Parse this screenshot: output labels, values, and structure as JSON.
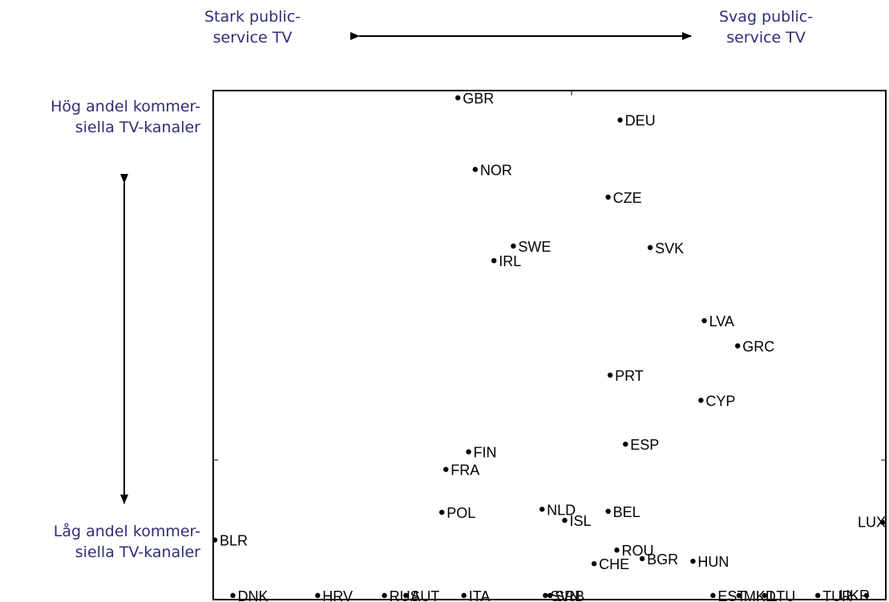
{
  "labels": {
    "top_left": [
      "Stark public-",
      "service TV"
    ],
    "top_right": [
      "Svag public-",
      "service TV"
    ],
    "left_top": [
      "Hög andel kommer-",
      "siella TV-kanaler"
    ],
    "left_bottom": [
      "Låg andel kommer-",
      "siella TV-kanaler"
    ]
  },
  "colors": {
    "annotation": "#2e2e7a",
    "axes": "#000000"
  },
  "chart_data": {
    "type": "scatter",
    "title": "",
    "xlabel": "",
    "ylabel": "",
    "xlim": [
      0,
      100
    ],
    "ylim": [
      0,
      100
    ],
    "grid": false,
    "points": [
      {
        "label": "GBR",
        "x": 36.4,
        "y": 99.2
      },
      {
        "label": "DEU",
        "x": 60.7,
        "y": 94.8
      },
      {
        "label": "NOR",
        "x": 39.0,
        "y": 85.0
      },
      {
        "label": "CZE",
        "x": 58.9,
        "y": 79.5
      },
      {
        "label": "SWE",
        "x": 44.7,
        "y": 69.8
      },
      {
        "label": "SVK",
        "x": 65.2,
        "y": 69.5
      },
      {
        "label": "IRL",
        "x": 41.8,
        "y": 66.9
      },
      {
        "label": "LVA",
        "x": 73.3,
        "y": 55.0
      },
      {
        "label": "GRC",
        "x": 78.3,
        "y": 50.0
      },
      {
        "label": "PRT",
        "x": 59.2,
        "y": 44.2
      },
      {
        "label": "CYP",
        "x": 72.8,
        "y": 39.2
      },
      {
        "label": "ESP",
        "x": 61.5,
        "y": 30.5
      },
      {
        "label": "FIN",
        "x": 38.0,
        "y": 29.0
      },
      {
        "label": "FRA",
        "x": 34.6,
        "y": 25.5
      },
      {
        "label": "POL",
        "x": 34.0,
        "y": 17.0
      },
      {
        "label": "NLD",
        "x": 49.0,
        "y": 17.6
      },
      {
        "label": "BEL",
        "x": 58.9,
        "y": 17.2
      },
      {
        "label": "ISL",
        "x": 52.4,
        "y": 15.4
      },
      {
        "label": "LUX",
        "x": 100.0,
        "y": 15.0
      },
      {
        "label": "BLR",
        "x": 0.0,
        "y": 11.5
      },
      {
        "label": "ROU",
        "x": 60.2,
        "y": 9.5
      },
      {
        "label": "BGR",
        "x": 64.0,
        "y": 7.8
      },
      {
        "label": "HUN",
        "x": 71.6,
        "y": 7.3
      },
      {
        "label": "CHE",
        "x": 56.8,
        "y": 6.8
      },
      {
        "label": "DNK",
        "x": 2.7,
        "y": 0.5
      },
      {
        "label": "HRV",
        "x": 15.4,
        "y": 0.5
      },
      {
        "label": "RUS",
        "x": 25.4,
        "y": 0.5
      },
      {
        "label": "AUT",
        "x": 28.6,
        "y": 0.5
      },
      {
        "label": "ITA",
        "x": 37.3,
        "y": 0.5
      },
      {
        "label": "SVN",
        "x": 49.5,
        "y": 0.5
      },
      {
        "label": "SRB",
        "x": 50.2,
        "y": 0.5
      },
      {
        "label": "EST",
        "x": 74.6,
        "y": 0.5
      },
      {
        "label": "MKD",
        "x": 78.5,
        "y": 0.5
      },
      {
        "label": "LTU",
        "x": 82.3,
        "y": 0.5
      },
      {
        "label": "TUR",
        "x": 90.3,
        "y": 0.5
      },
      {
        "label": "UKR",
        "x": 97.6,
        "y": 0.5
      }
    ]
  }
}
